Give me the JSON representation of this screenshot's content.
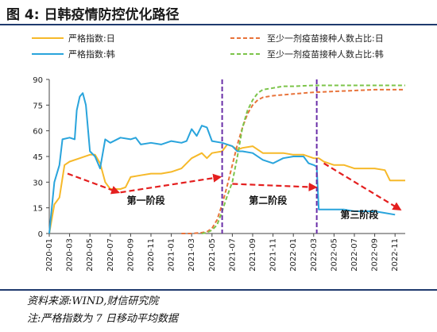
{
  "header": {
    "title": "图 4:  日韩疫情防控优化路径"
  },
  "footer": {
    "source": "资料来源:WIND,财信研究院",
    "note": "注:严格指数为 7 日移动平均数据"
  },
  "colors": {
    "strict_jp": "#f6b92a",
    "strict_kr": "#29a4dc",
    "vacc_jp": "#e8733a",
    "vacc_kr": "#7cc44a",
    "divider": "#6a2fa8",
    "arrow": "#e41f1f"
  },
  "chart_data": {
    "type": "line",
    "ylim": [
      0,
      90
    ],
    "y_ticks": [
      0,
      15,
      30,
      45,
      60,
      75,
      90
    ],
    "x_ticks": [
      "2020-01",
      "2020-03",
      "2020-05",
      "2020-07",
      "2020-09",
      "2020-11",
      "2021-01",
      "2021-03",
      "2021-05",
      "2021-07",
      "2021-09",
      "2021-11",
      "2022-01",
      "2022-03",
      "2022-05",
      "2022-07",
      "2022-09",
      "2022-11"
    ],
    "legend": [
      "严格指数:日",
      "严格指数:韩",
      "至少一剂疫苗接种人数占比:日",
      "至少一剂疫苗接种人数占比:韩"
    ],
    "stage_labels": [
      "第一阶段",
      "第二阶段",
      "第三阶段"
    ],
    "dividers": [
      17,
      26.3
    ],
    "series": [
      {
        "name": "严格指数:日",
        "style": "solid",
        "points": [
          [
            0,
            0
          ],
          [
            0.5,
            17
          ],
          [
            1,
            21
          ],
          [
            1.5,
            40
          ],
          [
            2,
            42
          ],
          [
            3,
            44
          ],
          [
            4,
            46
          ],
          [
            4.5,
            46
          ],
          [
            5,
            41
          ],
          [
            5.5,
            30
          ],
          [
            6,
            26
          ],
          [
            7,
            26
          ],
          [
            7.5,
            27
          ],
          [
            8,
            33
          ],
          [
            9,
            34
          ],
          [
            10,
            35
          ],
          [
            11,
            35
          ],
          [
            12,
            36
          ],
          [
            13,
            38
          ],
          [
            14,
            44
          ],
          [
            15,
            47
          ],
          [
            15.5,
            44
          ],
          [
            16,
            47
          ],
          [
            17,
            48
          ],
          [
            17.5,
            52
          ],
          [
            18,
            51
          ],
          [
            18.5,
            49
          ],
          [
            19,
            50
          ],
          [
            20,
            51
          ],
          [
            21,
            47
          ],
          [
            22,
            47
          ],
          [
            23,
            47
          ],
          [
            24,
            46
          ],
          [
            25,
            46
          ],
          [
            26,
            44
          ],
          [
            26.5,
            44
          ],
          [
            27,
            42
          ],
          [
            28,
            40
          ],
          [
            29,
            40
          ],
          [
            30,
            38
          ],
          [
            31,
            38
          ],
          [
            32,
            38
          ],
          [
            33,
            37
          ],
          [
            33.5,
            31
          ],
          [
            34,
            31
          ],
          [
            35,
            31
          ]
        ]
      },
      {
        "name": "严格指数:韩",
        "style": "solid",
        "points": [
          [
            0,
            0
          ],
          [
            0.5,
            30
          ],
          [
            1,
            40
          ],
          [
            1.3,
            55
          ],
          [
            2,
            56
          ],
          [
            2.5,
            55
          ],
          [
            2.7,
            72
          ],
          [
            3,
            80
          ],
          [
            3.3,
            82
          ],
          [
            3.6,
            75
          ],
          [
            4,
            48
          ],
          [
            4.5,
            45
          ],
          [
            5,
            38
          ],
          [
            5.5,
            55
          ],
          [
            6,
            53
          ],
          [
            7,
            56
          ],
          [
            8,
            55
          ],
          [
            8.5,
            56
          ],
          [
            9,
            52
          ],
          [
            10,
            53
          ],
          [
            11,
            52
          ],
          [
            12,
            54
          ],
          [
            13,
            53
          ],
          [
            13.5,
            54
          ],
          [
            14,
            61
          ],
          [
            14.5,
            57
          ],
          [
            15,
            63
          ],
          [
            15.5,
            62
          ],
          [
            16,
            54
          ],
          [
            17,
            53
          ],
          [
            18,
            51
          ],
          [
            18.5,
            48
          ],
          [
            19,
            48
          ],
          [
            20,
            47
          ],
          [
            21,
            43
          ],
          [
            22,
            41
          ],
          [
            23,
            44
          ],
          [
            24,
            45
          ],
          [
            25,
            45
          ],
          [
            25.5,
            41
          ],
          [
            26,
            40
          ],
          [
            26.3,
            39
          ],
          [
            26.5,
            14
          ],
          [
            27,
            14
          ],
          [
            28,
            14
          ],
          [
            29,
            14
          ],
          [
            30,
            13
          ],
          [
            31,
            13
          ],
          [
            32,
            13
          ],
          [
            33,
            12
          ],
          [
            34,
            11
          ]
        ]
      },
      {
        "name": "至少一剂疫苗接种人数占比:日",
        "style": "dashed",
        "points": [
          [
            13,
            0
          ],
          [
            14,
            0
          ],
          [
            15,
            0.5
          ],
          [
            15.5,
            1
          ],
          [
            16,
            3
          ],
          [
            16.5,
            8
          ],
          [
            17,
            17
          ],
          [
            17.5,
            28
          ],
          [
            18,
            40
          ],
          [
            18.5,
            52
          ],
          [
            19,
            62
          ],
          [
            19.5,
            70
          ],
          [
            20,
            75
          ],
          [
            20.5,
            78
          ],
          [
            21,
            79.5
          ],
          [
            22,
            80.5
          ],
          [
            23,
            81
          ],
          [
            24,
            81.5
          ],
          [
            25,
            82
          ],
          [
            26,
            82.5
          ],
          [
            28,
            83
          ],
          [
            30,
            83.5
          ],
          [
            32,
            84
          ],
          [
            35,
            84
          ]
        ]
      },
      {
        "name": "至少一剂疫苗接种人数占比:韩",
        "style": "dashed",
        "points": [
          [
            15,
            0
          ],
          [
            15.5,
            0.5
          ],
          [
            16,
            2
          ],
          [
            16.5,
            5
          ],
          [
            17,
            13
          ],
          [
            17.5,
            22
          ],
          [
            18,
            30
          ],
          [
            18.5,
            45
          ],
          [
            19,
            62
          ],
          [
            19.5,
            72
          ],
          [
            20,
            78
          ],
          [
            20.5,
            82
          ],
          [
            21,
            84
          ],
          [
            22,
            85
          ],
          [
            23,
            86
          ],
          [
            24,
            86
          ],
          [
            26,
            86.5
          ],
          [
            28,
            86.5
          ],
          [
            30,
            86.5
          ],
          [
            32,
            86.5
          ],
          [
            35,
            86.5
          ]
        ]
      }
    ],
    "trend_arrows": [
      [
        [
          1.8,
          35
        ],
        [
          6.8,
          24
        ]
      ],
      [
        [
          7,
          24
        ],
        [
          16.8,
          33
        ]
      ],
      [
        [
          18,
          29
        ],
        [
          26.2,
          27
        ]
      ],
      [
        [
          27,
          41
        ],
        [
          34.5,
          14
        ]
      ]
    ]
  }
}
